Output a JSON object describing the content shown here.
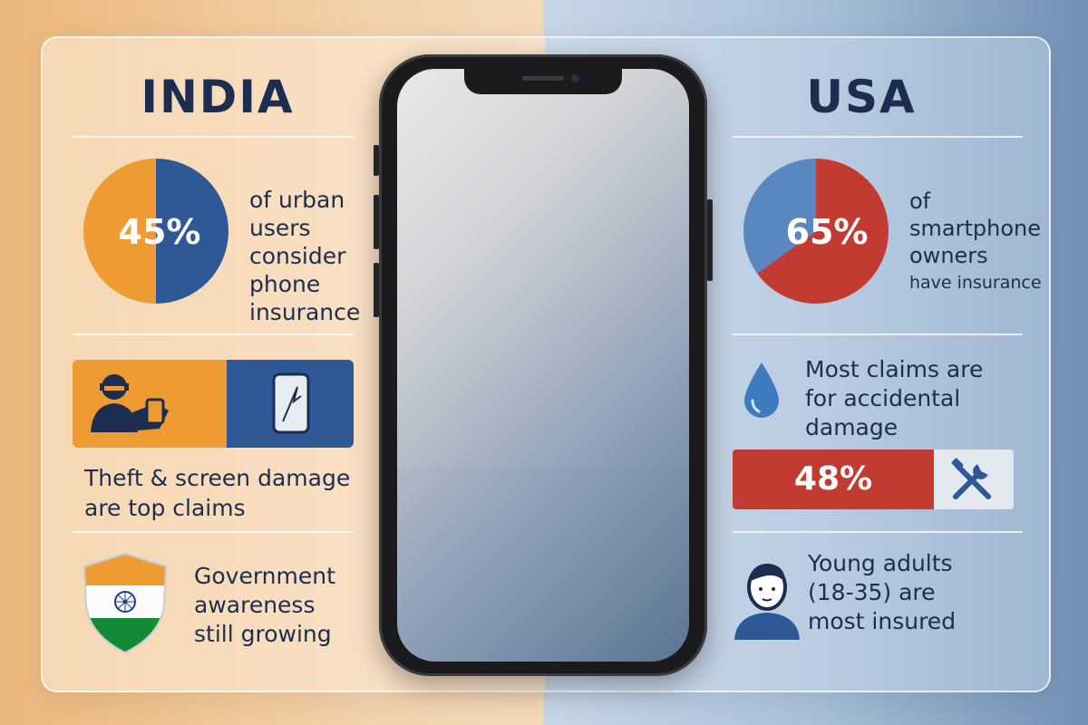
{
  "india": {
    "heading": "INDIA",
    "stat_value": "45%",
    "stat_fraction": 0.45,
    "stat_text": [
      "of urban",
      "users",
      "consider",
      "phone",
      "insurance"
    ],
    "claims_text": [
      "Theft & screen damage",
      "are top claims"
    ],
    "claims_icons": [
      "thief-icon",
      "cracked-phone-icon"
    ],
    "awareness_icon": "india-flag-shield-icon",
    "awareness_text": [
      "Government",
      "awareness",
      "still growing"
    ],
    "colors": {
      "orange": "#ee9b33",
      "blue": "#2f5896",
      "green": "#138a36"
    }
  },
  "usa": {
    "heading": "USA",
    "stat_value": "65%",
    "stat_fraction": 0.65,
    "stat_text": [
      "of",
      "smartphone",
      "owners",
      "have insurance"
    ],
    "claims_icon": "water-drop-icon",
    "claims_text": [
      "Most claims are",
      "for accidental",
      "damage"
    ],
    "bar_value": "48%",
    "bar_fraction": 0.48,
    "bar_icon": "tools-icon",
    "demographic_icon": "person-icon",
    "demographic_text": [
      "Young adults",
      "(18-35) are",
      "most insured"
    ],
    "colors": {
      "red": "#c23b32",
      "blue": "#5a87c0",
      "navy": "#1c2d4f"
    }
  },
  "center_device": "smartphone"
}
